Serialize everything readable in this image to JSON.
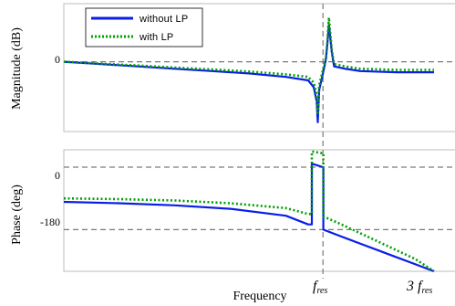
{
  "chart_data": [
    {
      "type": "line",
      "panel": "magnitude",
      "ylabel": "Magnitude (dB)",
      "xlabel": "",
      "yticks": [
        "0"
      ],
      "ylim": [
        -30,
        25
      ],
      "xlim": [
        0,
        1
      ],
      "legend": {
        "placement": "top-left",
        "entries": [
          {
            "name": "without LP",
            "color": "#0a1ee6",
            "style": "solid"
          },
          {
            "name": "with LP",
            "color": "#00a000",
            "style": "dotted"
          }
        ]
      },
      "reference_lines": {
        "y": [
          0
        ],
        "x": [
          0.7
        ]
      },
      "series": [
        {
          "name": "without LP",
          "x": [
            0.0,
            0.1,
            0.2,
            0.3,
            0.4,
            0.5,
            0.6,
            0.66,
            0.675,
            0.683,
            0.686,
            0.69,
            0.7,
            0.708,
            0.712,
            0.716,
            0.724,
            0.73,
            0.76,
            0.8,
            0.9,
            1.0
          ],
          "y": [
            0,
            -1,
            -2,
            -3,
            -4,
            -5,
            -6.5,
            -8,
            -11,
            -17,
            -26,
            -12,
            -5,
            1,
            8,
            16,
            4,
            -2,
            -3,
            -4,
            -4.5,
            -4.5
          ]
        },
        {
          "name": "with LP",
          "x": [
            0.0,
            0.1,
            0.2,
            0.3,
            0.4,
            0.5,
            0.6,
            0.66,
            0.675,
            0.683,
            0.686,
            0.69,
            0.7,
            0.708,
            0.712,
            0.716,
            0.724,
            0.73,
            0.76,
            0.8,
            0.9,
            1.0
          ],
          "y": [
            0,
            -0.8,
            -1.6,
            -2.5,
            -3.3,
            -4.2,
            -5.4,
            -6.5,
            -9,
            -14,
            -22,
            -10,
            -3.5,
            1.5,
            9,
            19,
            5,
            -1,
            -2,
            -3,
            -3.5,
            -3.5
          ]
        }
      ]
    },
    {
      "type": "line",
      "panel": "phase",
      "ylabel": "Phase (deg)",
      "xlabel": "Frequency",
      "yticks": [
        "0",
        "-180"
      ],
      "xticks": [
        {
          "label": "f",
          "subscript": "res",
          "x": 0.7
        },
        {
          "label": "3 f",
          "subscript": "res",
          "x": 1.0
        }
      ],
      "ylim": [
        -300,
        50
      ],
      "xlim": [
        0,
        1
      ],
      "reference_lines": {
        "y": [
          0,
          -180
        ],
        "x": [
          0.7
        ]
      },
      "series": [
        {
          "name": "without LP",
          "x": [
            0.0,
            0.15,
            0.3,
            0.45,
            0.6,
            0.66,
            0.67,
            0.7,
            0.701,
            0.75,
            0.8,
            0.85,
            0.9,
            0.95,
            1.0
          ],
          "y": [
            -100,
            -104,
            -110,
            -120,
            -140,
            -165,
            10,
            0,
            -180,
            -200,
            -220,
            -240,
            -260,
            -280,
            -300
          ],
          "step_at": [
            0.67,
            0.701
          ]
        },
        {
          "name": "with LP",
          "x": [
            0.0,
            0.15,
            0.3,
            0.45,
            0.6,
            0.66,
            0.67,
            0.7,
            0.701,
            0.75,
            0.8,
            0.85,
            0.9,
            0.95,
            1.0
          ],
          "y": [
            -90,
            -92,
            -96,
            -104,
            -118,
            -135,
            45,
            40,
            -142,
            -165,
            -190,
            -215,
            -240,
            -265,
            -300
          ],
          "step_at": [
            0.67,
            0.701
          ]
        }
      ]
    }
  ]
}
